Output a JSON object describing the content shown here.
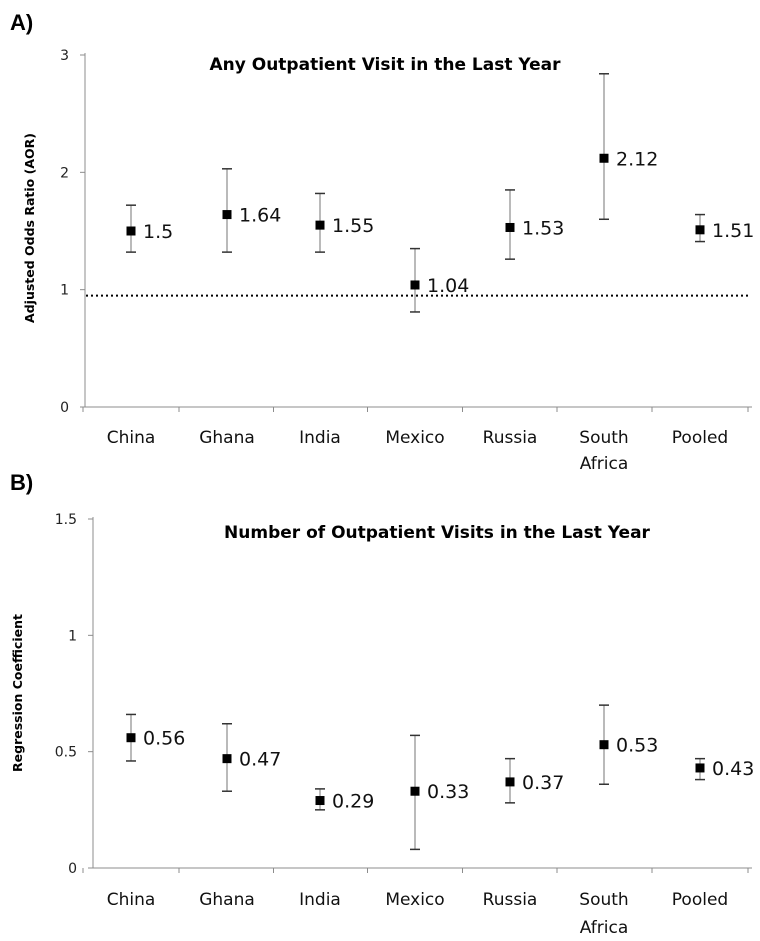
{
  "chart_data": [
    {
      "panel": "A)",
      "type": "scatter",
      "title": "Any Outpatient Visit in the Last Year",
      "ylabel": "Adjusted Odds Ratio (AOR)",
      "xlabel": "",
      "ylim": [
        0,
        3
      ],
      "yticks": [
        "0",
        "1",
        "2",
        "3"
      ],
      "categories": [
        "China",
        "Ghana",
        "India",
        "Mexico",
        "Russia",
        "South Africa",
        "Pooled"
      ],
      "values": [
        1.5,
        1.64,
        1.55,
        1.04,
        1.53,
        2.12,
        1.51
      ],
      "labels": [
        "1.5",
        "1.64",
        "1.55",
        "1.04",
        "1.53",
        "2.12",
        "1.51"
      ],
      "ci_low": [
        1.32,
        1.32,
        1.32,
        0.81,
        1.26,
        1.6,
        1.41
      ],
      "ci_high": [
        1.72,
        2.03,
        1.82,
        1.35,
        1.85,
        2.84,
        1.64
      ],
      "reference_line": 1,
      "grid": false
    },
    {
      "panel": "B)",
      "type": "scatter",
      "title": "Number of Outpatient Visits in the Last Year",
      "ylabel": "Regression Coefficient",
      "xlabel": "",
      "ylim": [
        0,
        1.5
      ],
      "yticks": [
        "0",
        "0.5",
        "1",
        "1.5"
      ],
      "categories": [
        "China",
        "Ghana",
        "India",
        "Mexico",
        "Russia",
        "South Africa",
        "Pooled"
      ],
      "values": [
        0.56,
        0.47,
        0.29,
        0.33,
        0.37,
        0.53,
        0.43
      ],
      "labels": [
        "0.56",
        "0.47",
        "0.29",
        "0.33",
        "0.37",
        "0.53",
        "0.43"
      ],
      "ci_low": [
        0.46,
        0.33,
        0.25,
        0.08,
        0.28,
        0.36,
        0.38
      ],
      "ci_high": [
        0.66,
        0.62,
        0.34,
        0.57,
        0.47,
        0.7,
        0.47
      ],
      "grid": false
    }
  ]
}
